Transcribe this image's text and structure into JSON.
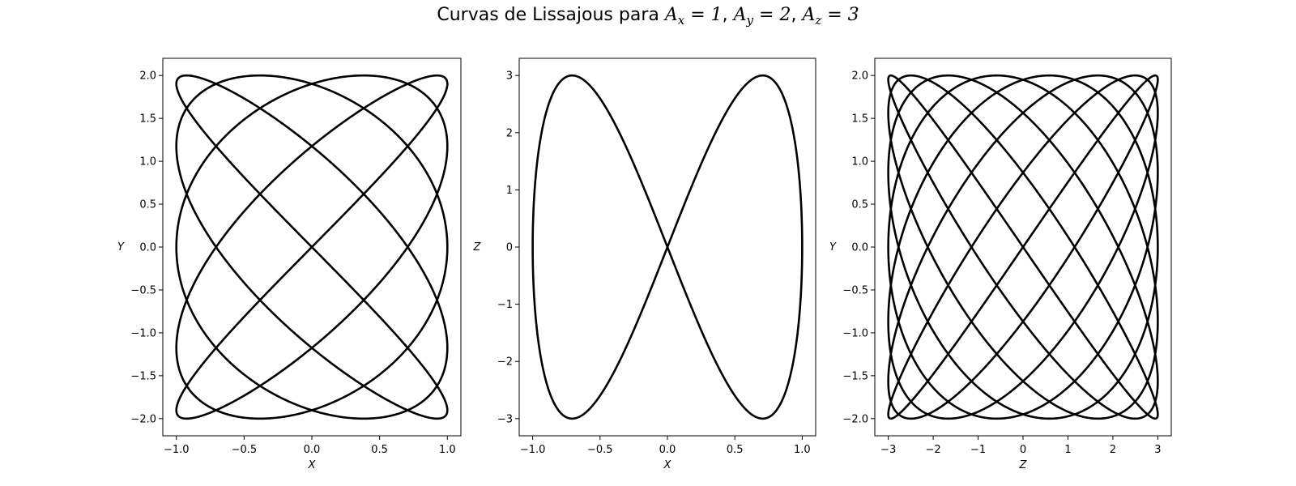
{
  "title": {
    "prefix": "Curvas de Lissajous para ",
    "terms": [
      {
        "sym": "A",
        "sub": "x",
        "value": "1"
      },
      {
        "sym": "A",
        "sub": "y",
        "value": "2"
      },
      {
        "sym": "A",
        "sub": "z",
        "value": "3"
      }
    ]
  },
  "chart_data": [
    {
      "type": "line",
      "xlabel": "X",
      "ylabel": "Y",
      "xlim": [
        -1.1,
        1.1
      ],
      "ylim": [
        -2.2,
        2.2
      ],
      "xticks": [
        -1.0,
        -0.5,
        0.0,
        0.5,
        1.0
      ],
      "xtick_labels": [
        "−1.0",
        "−0.5",
        "0.0",
        "0.5",
        "1.0"
      ],
      "yticks": [
        -2.0,
        -1.5,
        -1.0,
        -0.5,
        0.0,
        0.5,
        1.0,
        1.5,
        2.0
      ],
      "ytick_labels": [
        "−2.0",
        "−1.5",
        "−1.0",
        "−0.5",
        "0.0",
        "0.5",
        "1.0",
        "1.5",
        "2.0"
      ],
      "curve": {
        "x_amplitude": 1,
        "x_frequency": 5,
        "y_amplitude": 2,
        "y_frequency": 4
      },
      "grid": false,
      "color": "#000000"
    },
    {
      "type": "line",
      "xlabel": "X",
      "ylabel": "Z",
      "xlim": [
        -1.1,
        1.1
      ],
      "ylim": [
        -3.3,
        3.3
      ],
      "xticks": [
        -1.0,
        -0.5,
        0.0,
        0.5,
        1.0
      ],
      "xtick_labels": [
        "−1.0",
        "−0.5",
        "0.0",
        "0.5",
        "1.0"
      ],
      "yticks": [
        -3,
        -2,
        -1,
        0,
        1,
        2,
        3
      ],
      "ytick_labels": [
        "−3",
        "−2",
        "−1",
        "0",
        "1",
        "2",
        "3"
      ],
      "curve": {
        "x_amplitude": 1,
        "x_frequency": 1,
        "y_amplitude": 3,
        "y_frequency": 2
      },
      "grid": false,
      "color": "#000000"
    },
    {
      "type": "line",
      "xlabel": "Z",
      "ylabel": "Y",
      "xlim": [
        -3.3,
        3.3
      ],
      "ylim": [
        -2.2,
        2.2
      ],
      "xticks": [
        -3,
        -2,
        -1,
        0,
        1,
        2,
        3
      ],
      "xtick_labels": [
        "−3",
        "−2",
        "−1",
        "0",
        "1",
        "2",
        "3"
      ],
      "yticks": [
        -2.0,
        -1.5,
        -1.0,
        -0.5,
        0.0,
        0.5,
        1.0,
        1.5,
        2.0
      ],
      "ytick_labels": [
        "−2.0",
        "−1.5",
        "−1.0",
        "−0.5",
        "0.0",
        "0.5",
        "1.0",
        "1.5",
        "2.0"
      ],
      "curve": {
        "x_amplitude": 3,
        "x_frequency": 7,
        "y_amplitude": 2,
        "y_frequency": 8
      },
      "grid": false,
      "color": "#000000"
    }
  ]
}
